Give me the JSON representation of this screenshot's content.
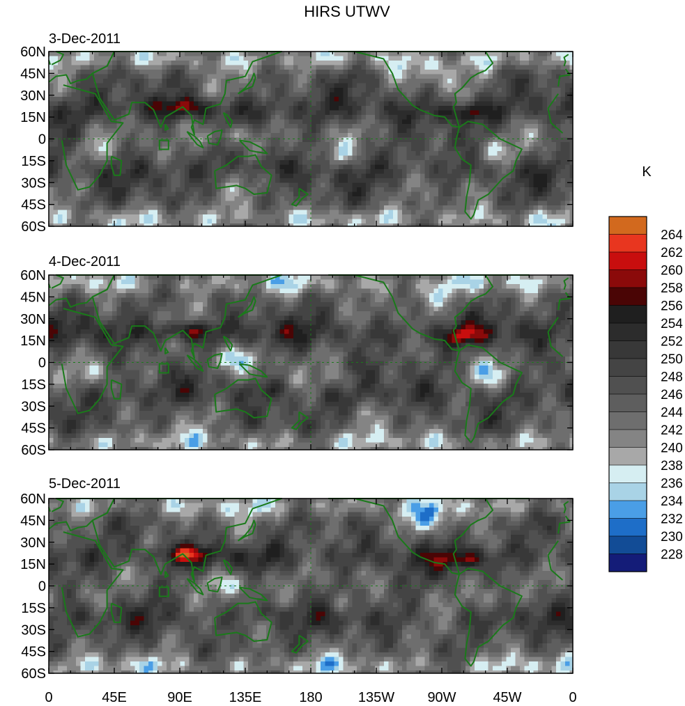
{
  "title": "HIRS UTWV",
  "unit_label": "K",
  "panels": [
    {
      "date": "3-Dec-2011",
      "seed": 3
    },
    {
      "date": "4-Dec-2011",
      "seed": 4
    },
    {
      "date": "5-Dec-2011",
      "seed": 5
    }
  ],
  "lat_ticks": [
    "60N",
    "45N",
    "30N",
    "15N",
    "0",
    "15S",
    "30S",
    "45S",
    "60S"
  ],
  "lon_ticks": [
    "0",
    "45E",
    "90E",
    "135E",
    "180",
    "135W",
    "90W",
    "45W",
    "0"
  ],
  "colorbar": {
    "labels": [
      "264",
      "262",
      "260",
      "258",
      "256",
      "254",
      "252",
      "250",
      "248",
      "246",
      "244",
      "242",
      "240",
      "238",
      "236",
      "234",
      "232",
      "230",
      "228"
    ],
    "colors": [
      "#d2691e",
      "#e8361f",
      "#c80e0e",
      "#8b0a0a",
      "#4a0505",
      "#1f1f1f",
      "#2c2c2c",
      "#383838",
      "#444444",
      "#505050",
      "#5e5e5e",
      "#6e6e6e",
      "#848484",
      "#a8a8a8",
      "#d6eef2",
      "#a9d3e6",
      "#4a9ee6",
      "#1e6ec8",
      "#124c96",
      "#141c78"
    ]
  },
  "coastline_color": "#1a7a1a"
}
